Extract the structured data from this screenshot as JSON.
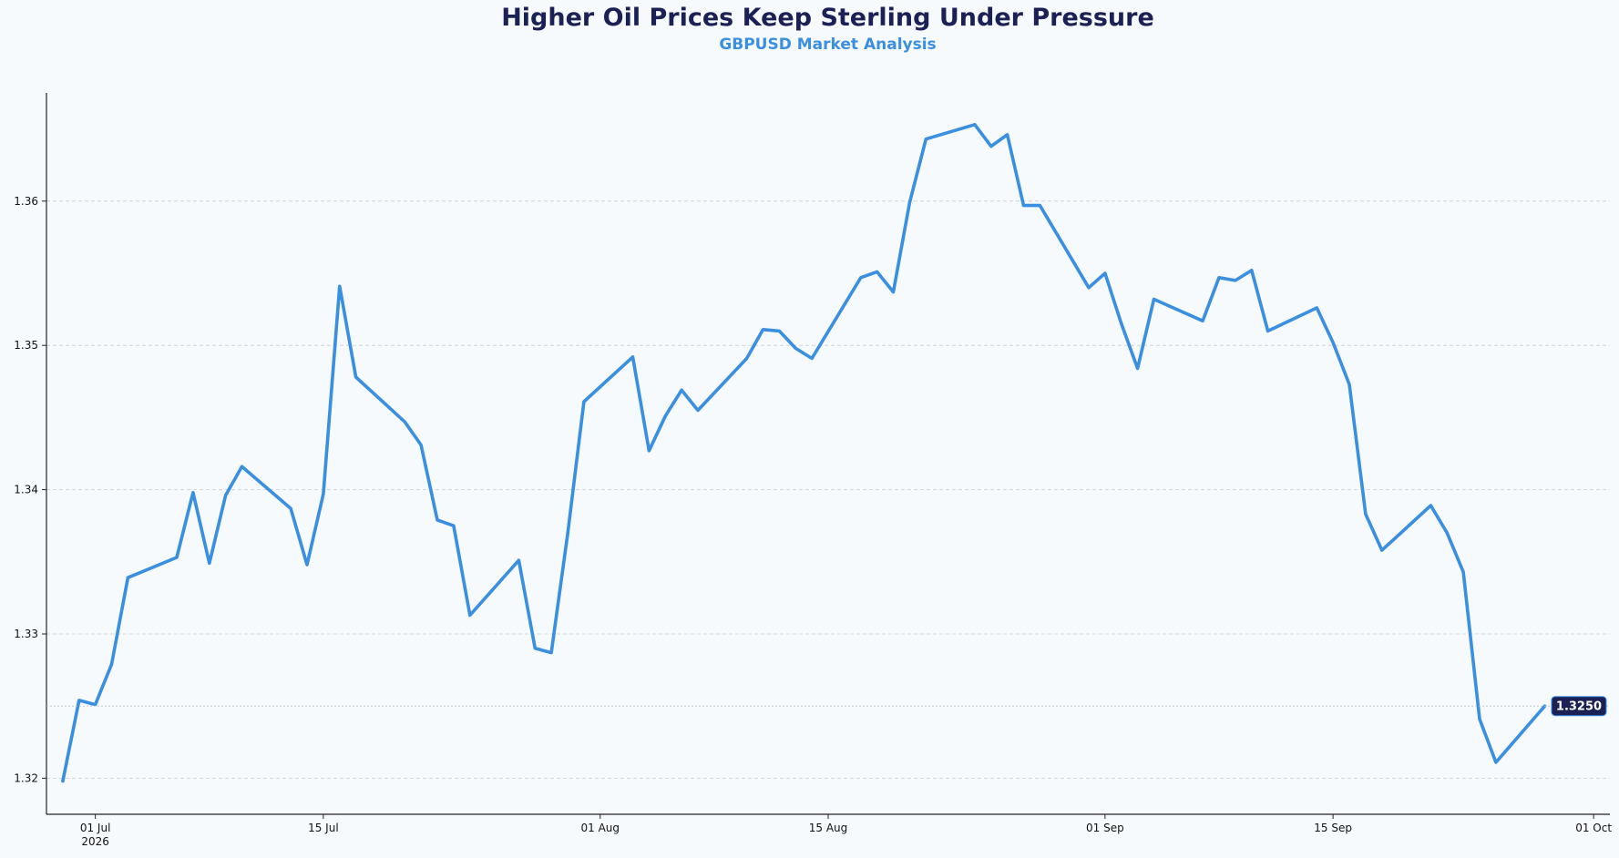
{
  "chart_data": {
    "type": "line",
    "title": "Higher Oil Prices Keep Sterling Under Pressure",
    "subtitle": "GBPUSD Market Analysis",
    "xlabel": "",
    "ylabel": "",
    "xlim": [
      "2026-06-28",
      "2026-10-02"
    ],
    "ylim": [
      1.3175,
      1.3675
    ],
    "yticks": [
      1.32,
      1.33,
      1.34,
      1.35,
      1.36
    ],
    "ytick_labels": [
      "1.32",
      "1.33",
      "1.34",
      "1.35",
      "1.36"
    ],
    "xticks": [
      {
        "date": "2026-07-01",
        "label": "01 Jul",
        "sublabel": "2026"
      },
      {
        "date": "2026-07-15",
        "label": "15 Jul",
        "sublabel": ""
      },
      {
        "date": "2026-08-01",
        "label": "01 Aug",
        "sublabel": ""
      },
      {
        "date": "2026-08-15",
        "label": "15 Aug",
        "sublabel": ""
      },
      {
        "date": "2026-09-01",
        "label": "01 Sep",
        "sublabel": ""
      },
      {
        "date": "2026-09-15",
        "label": "15 Sep",
        "sublabel": ""
      },
      {
        "date": "2026-10-01",
        "label": "01 Oct",
        "sublabel": ""
      }
    ],
    "grid": "horizontal-dashed",
    "colors": {
      "line": "#3a8fe0",
      "label_bg": "#1c2155",
      "title": "#1c2155",
      "subtitle": "#3a8fe0"
    },
    "last_value_label": "1.3250",
    "last_value": 1.325,
    "series": [
      {
        "x": [
          "2026-06-29",
          "2026-06-30",
          "2026-07-01",
          "2026-07-02",
          "2026-07-03",
          "2026-07-06",
          "2026-07-07",
          "2026-07-08",
          "2026-07-09",
          "2026-07-10",
          "2026-07-13",
          "2026-07-14",
          "2026-07-15",
          "2026-07-16",
          "2026-07-17",
          "2026-07-20",
          "2026-07-21",
          "2026-07-22",
          "2026-07-23",
          "2026-07-24",
          "2026-07-27",
          "2026-07-28",
          "2026-07-29",
          "2026-07-30",
          "2026-07-31",
          "2026-08-03",
          "2026-08-04",
          "2026-08-05",
          "2026-08-06",
          "2026-08-07",
          "2026-08-10",
          "2026-08-11",
          "2026-08-12",
          "2026-08-13",
          "2026-08-14",
          "2026-08-17",
          "2026-08-18",
          "2026-08-19",
          "2026-08-20",
          "2026-08-21",
          "2026-08-24",
          "2026-08-25",
          "2026-08-26",
          "2026-08-27",
          "2026-08-28",
          "2026-08-31",
          "2026-09-01",
          "2026-09-02",
          "2026-09-03",
          "2026-09-04",
          "2026-09-07",
          "2026-09-08",
          "2026-09-09",
          "2026-09-10",
          "2026-09-11",
          "2026-09-14",
          "2026-09-15",
          "2026-09-16",
          "2026-09-17",
          "2026-09-18",
          "2026-09-21",
          "2026-09-22",
          "2026-09-23",
          "2026-09-24",
          "2026-09-25",
          "2026-09-28"
        ],
        "y": [
          1.3198,
          1.3254,
          1.3251,
          1.3279,
          1.3339,
          1.3353,
          1.3398,
          1.3349,
          1.3396,
          1.3416,
          1.3387,
          1.3348,
          1.3397,
          1.3541,
          1.3478,
          1.3447,
          1.3431,
          1.3379,
          1.3375,
          1.3313,
          1.3351,
          1.329,
          1.3287,
          1.3369,
          1.3461,
          1.3492,
          1.3427,
          1.3451,
          1.3469,
          1.3455,
          1.3491,
          1.3511,
          1.351,
          1.3498,
          1.3491,
          1.3547,
          1.3551,
          1.3537,
          1.3599,
          1.3643,
          1.3653,
          1.3638,
          1.3646,
          1.3597,
          1.3597,
          1.354,
          1.355,
          1.3515,
          1.3484,
          1.3532,
          1.3517,
          1.3547,
          1.3545,
          1.3552,
          1.351,
          1.3526,
          1.3502,
          1.3473,
          1.3383,
          1.3358,
          1.3389,
          1.337,
          1.3343,
          1.3241,
          1.3211,
          1.325
        ]
      }
    ]
  }
}
